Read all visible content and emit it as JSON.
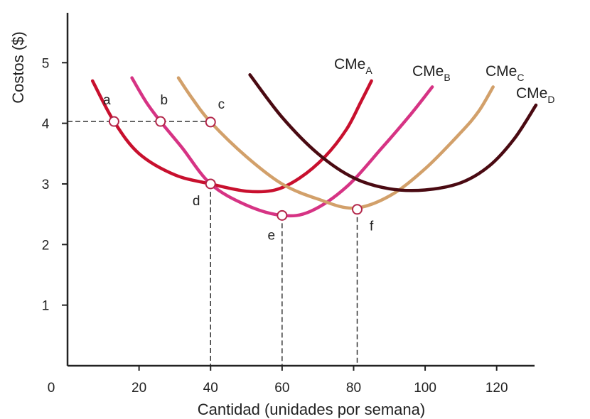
{
  "chart_data": {
    "type": "line",
    "xlabel": "Cantidad (unidades por semana)",
    "ylabel": "Costos ($)",
    "xlim": [
      0,
      130
    ],
    "ylim": [
      0,
      5.8
    ],
    "x_ticks": [
      "0",
      "20",
      "40",
      "60",
      "80",
      "100",
      "120"
    ],
    "y_ticks": [
      "1",
      "2",
      "3",
      "4",
      "5"
    ],
    "series": [
      {
        "name": "CMeA",
        "base": "CMe",
        "sub": "A",
        "color": "#c8102e",
        "points": [
          [
            7,
            4.7
          ],
          [
            13,
            4.03
          ],
          [
            20,
            3.5
          ],
          [
            30,
            3.15
          ],
          [
            40,
            3.0
          ],
          [
            50,
            2.88
          ],
          [
            58,
            2.9
          ],
          [
            65,
            3.1
          ],
          [
            72,
            3.45
          ],
          [
            78,
            3.9
          ],
          [
            82,
            4.35
          ],
          [
            85,
            4.7
          ]
        ]
      },
      {
        "name": "CMeB",
        "base": "CMe",
        "sub": "B",
        "color": "#d63384",
        "points": [
          [
            18,
            4.75
          ],
          [
            22,
            4.35
          ],
          [
            26,
            4.03
          ],
          [
            32,
            3.6
          ],
          [
            40,
            3.0
          ],
          [
            50,
            2.65
          ],
          [
            60,
            2.48
          ],
          [
            68,
            2.55
          ],
          [
            78,
            2.95
          ],
          [
            88,
            3.6
          ],
          [
            96,
            4.15
          ],
          [
            102,
            4.6
          ]
        ]
      },
      {
        "name": "CMeC",
        "base": "CMe",
        "sub": "C",
        "color": "#d2a06a",
        "points": [
          [
            31,
            4.75
          ],
          [
            35,
            4.4
          ],
          [
            40,
            4.02
          ],
          [
            50,
            3.45
          ],
          [
            60,
            3.0
          ],
          [
            70,
            2.75
          ],
          [
            80,
            2.6
          ],
          [
            90,
            2.8
          ],
          [
            100,
            3.25
          ],
          [
            110,
            3.85
          ],
          [
            115,
            4.2
          ],
          [
            119,
            4.6
          ]
        ]
      },
      {
        "name": "CMeD",
        "base": "CMe",
        "sub": "D",
        "color": "#4a0a12",
        "points": [
          [
            51,
            4.8
          ],
          [
            60,
            4.1
          ],
          [
            70,
            3.5
          ],
          [
            80,
            3.1
          ],
          [
            90,
            2.92
          ],
          [
            100,
            2.9
          ],
          [
            110,
            3.02
          ],
          [
            118,
            3.3
          ],
          [
            125,
            3.75
          ],
          [
            131,
            4.3
          ]
        ]
      }
    ],
    "points": [
      {
        "label": "a",
        "x": 13,
        "y": 4.03,
        "lx": -2,
        "ly": 0.28
      },
      {
        "label": "b",
        "x": 26,
        "y": 4.03,
        "lx": 1,
        "ly": 0.28
      },
      {
        "label": "c",
        "x": 40,
        "y": 4.02,
        "lx": 3,
        "ly": 0.22
      },
      {
        "label": "d",
        "x": 40,
        "y": 3.0,
        "lx": -4,
        "ly": -0.35
      },
      {
        "label": "e",
        "x": 60,
        "y": 2.48,
        "lx": -3,
        "ly": -0.4
      },
      {
        "label": "f",
        "x": 81,
        "y": 2.58,
        "lx": 4,
        "ly": -0.35
      }
    ],
    "guides": [
      {
        "from": [
          0,
          4.03
        ],
        "to": [
          40,
          4.03
        ]
      },
      {
        "from": [
          40,
          3.0
        ],
        "to": [
          40,
          0
        ]
      },
      {
        "from": [
          60,
          2.48
        ],
        "to": [
          60,
          0
        ]
      },
      {
        "from": [
          81,
          2.58
        ],
        "to": [
          81,
          0
        ]
      }
    ]
  }
}
